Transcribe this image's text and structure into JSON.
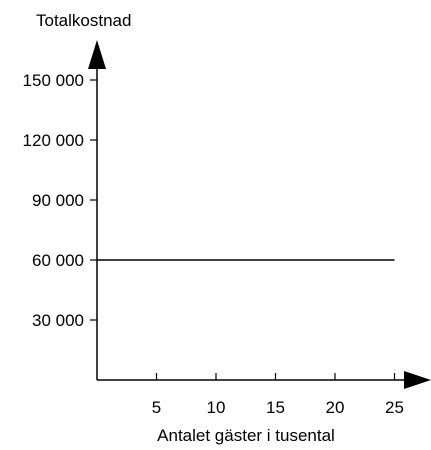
{
  "chart_data": {
    "type": "line",
    "title": "",
    "ylabel": "Totalkostnad",
    "xlabel": "Antalet gäster i tusental",
    "x_ticks": [
      "5",
      "10",
      "15",
      "20",
      "25"
    ],
    "y_ticks": [
      "30 000",
      "60 000",
      "90 000",
      "120 000",
      "150 000"
    ],
    "xlim": [
      0,
      27.5
    ],
    "ylim": [
      0,
      168000
    ],
    "grid": false,
    "series": [
      {
        "x": [
          0,
          25
        ],
        "y": [
          60000,
          60000
        ]
      }
    ],
    "colors": {
      "axis": "#000000",
      "line": "#000000",
      "text": "#000000"
    }
  }
}
